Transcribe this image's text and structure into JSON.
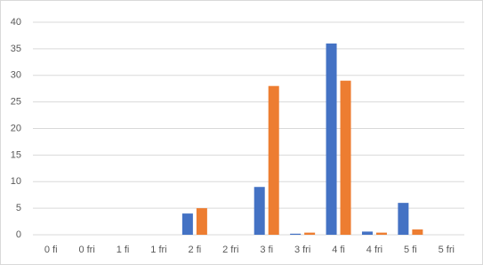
{
  "chart_data": {
    "type": "bar",
    "categories": [
      "0 fi",
      "0 fri",
      "1 fi",
      "1 fri",
      "2 fi",
      "2 fri",
      "3 fi",
      "3 fri",
      "4 fi",
      "4 fri",
      "5 fi",
      "5 fri"
    ],
    "series": [
      {
        "color": "#4472c4",
        "values": [
          0,
          0,
          0,
          0,
          4,
          0,
          9,
          0.2,
          36,
          0.6,
          6,
          0
        ]
      },
      {
        "color": "#ed7d31",
        "values": [
          0,
          0,
          0,
          0,
          5,
          0,
          28,
          0.4,
          29,
          0.4,
          1,
          0
        ]
      }
    ],
    "ylim": [
      0,
      40
    ],
    "yticks": [
      0,
      5,
      10,
      15,
      20,
      25,
      30,
      35,
      40
    ],
    "grid": true
  }
}
